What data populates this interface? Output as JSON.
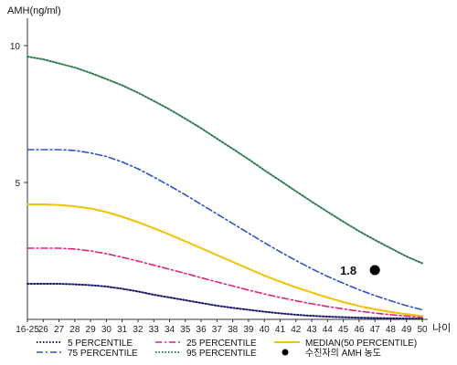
{
  "chart_data": {
    "type": "line",
    "ylabel": "AMH(ng/ml)",
    "xlabel": "나이",
    "x_categories": [
      "16-25",
      "26",
      "27",
      "28",
      "29",
      "30",
      "31",
      "32",
      "33",
      "34",
      "35",
      "36",
      "37",
      "38",
      "39",
      "40",
      "41",
      "42",
      "43",
      "44",
      "45",
      "46",
      "47",
      "48",
      "49",
      "50"
    ],
    "y_ticks": [
      5,
      10
    ],
    "ylim": [
      0,
      11
    ],
    "grid": false,
    "legend_position": "bottom",
    "series": [
      {
        "name": "5 PERCENTILE",
        "color": "#1a1a6e",
        "style": "dotted",
        "values": [
          1.3,
          1.3,
          1.3,
          1.28,
          1.25,
          1.2,
          1.12,
          1.02,
          0.9,
          0.8,
          0.7,
          0.6,
          0.5,
          0.42,
          0.35,
          0.28,
          0.22,
          0.17,
          0.13,
          0.1,
          0.08,
          0.06,
          0.05,
          0.04,
          0.03,
          0.03
        ]
      },
      {
        "name": "25 PERCENTILE",
        "color": "#e0207f",
        "style": "dashdot",
        "values": [
          2.6,
          2.6,
          2.6,
          2.57,
          2.5,
          2.4,
          2.27,
          2.13,
          1.98,
          1.83,
          1.68,
          1.52,
          1.37,
          1.22,
          1.07,
          0.93,
          0.8,
          0.68,
          0.57,
          0.47,
          0.38,
          0.3,
          0.23,
          0.17,
          0.12,
          0.08
        ]
      },
      {
        "name": "MEDIAN(50 PERCENTILE)",
        "color": "#f2c200",
        "style": "solid",
        "values": [
          4.2,
          4.2,
          4.18,
          4.13,
          4.05,
          3.92,
          3.75,
          3.55,
          3.33,
          3.1,
          2.85,
          2.6,
          2.35,
          2.1,
          1.85,
          1.6,
          1.38,
          1.17,
          0.98,
          0.8,
          0.63,
          0.49,
          0.37,
          0.27,
          0.19,
          0.12
        ]
      },
      {
        "name": "75 PERCENTILE",
        "color": "#2a55c8",
        "style": "dashdot",
        "values": [
          6.2,
          6.2,
          6.2,
          6.17,
          6.08,
          5.95,
          5.75,
          5.5,
          5.2,
          4.88,
          4.55,
          4.2,
          3.85,
          3.5,
          3.15,
          2.8,
          2.47,
          2.15,
          1.85,
          1.57,
          1.32,
          1.08,
          0.87,
          0.68,
          0.5,
          0.35
        ]
      },
      {
        "name": "95 PERCENTILE",
        "color": "#2e7d4f",
        "style": "dotted",
        "values": [
          9.6,
          9.5,
          9.35,
          9.2,
          9.0,
          8.78,
          8.55,
          8.28,
          7.98,
          7.67,
          7.33,
          6.98,
          6.6,
          6.23,
          5.85,
          5.45,
          5.07,
          4.68,
          4.3,
          3.93,
          3.57,
          3.22,
          2.9,
          2.6,
          2.3,
          2.05
        ]
      }
    ],
    "marker": {
      "legend_label": "수진자의 AMH 농도",
      "x": "47",
      "y": 1.8,
      "label": "1.8",
      "color": "#000000"
    }
  }
}
